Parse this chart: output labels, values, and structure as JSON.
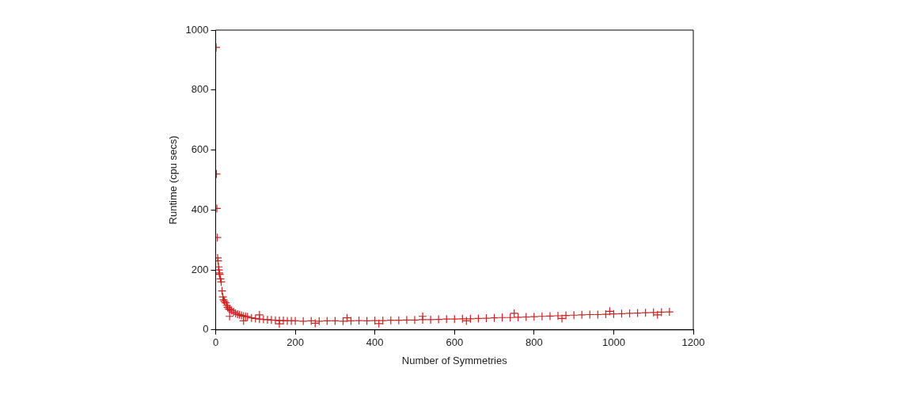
{
  "chart_data": {
    "type": "scatter",
    "xlabel": "Number of Symmetries",
    "ylabel": "Runtime (cpu secs)",
    "xlim": [
      0,
      1200
    ],
    "ylim": [
      0,
      1000
    ],
    "xticks": [
      0,
      200,
      400,
      600,
      800,
      1000,
      1200
    ],
    "yticks": [
      0,
      200,
      400,
      600,
      800,
      1000
    ],
    "grid": false,
    "legend": false,
    "marker": "cross",
    "series": [
      {
        "color": "#cc2222",
        "x": [
          1,
          2,
          3,
          4,
          5,
          6,
          7,
          8,
          9,
          10,
          12,
          14,
          16,
          18,
          20,
          22,
          25,
          28,
          30,
          33,
          36,
          40,
          45,
          50,
          55,
          60,
          65,
          70,
          75,
          80,
          90,
          100,
          110,
          120,
          130,
          140,
          150,
          160,
          170,
          180,
          190,
          200,
          220,
          240,
          260,
          280,
          300,
          320,
          340,
          360,
          380,
          400,
          420,
          440,
          460,
          480,
          500,
          520,
          540,
          560,
          580,
          600,
          620,
          640,
          660,
          680,
          700,
          720,
          740,
          760,
          780,
          800,
          820,
          840,
          860,
          880,
          900,
          920,
          940,
          960,
          980,
          1000,
          1020,
          1040,
          1060,
          1080,
          1100,
          1120,
          1140,
          35,
          70,
          110,
          160,
          250,
          330,
          410,
          520,
          630,
          750,
          870,
          990,
          1110
        ],
        "values": [
          942,
          520,
          405,
          308,
          240,
          230,
          210,
          200,
          190,
          185,
          170,
          160,
          130,
          110,
          100,
          95,
          90,
          82,
          75,
          70,
          68,
          65,
          60,
          55,
          52,
          50,
          48,
          46,
          45,
          44,
          40,
          38,
          36,
          35,
          34,
          33,
          32,
          31,
          31,
          30,
          30,
          30,
          29,
          30,
          29,
          30,
          30,
          29,
          30,
          31,
          30,
          31,
          31,
          32,
          32,
          33,
          33,
          34,
          34,
          35,
          36,
          36,
          37,
          37,
          38,
          39,
          40,
          41,
          41,
          42,
          43,
          44,
          45,
          46,
          47,
          48,
          49,
          50,
          51,
          51,
          52,
          53,
          54,
          55,
          56,
          57,
          58,
          59,
          60,
          45,
          30,
          50,
          20,
          22,
          40,
          21,
          45,
          30,
          55,
          38,
          62,
          50
        ]
      }
    ]
  }
}
